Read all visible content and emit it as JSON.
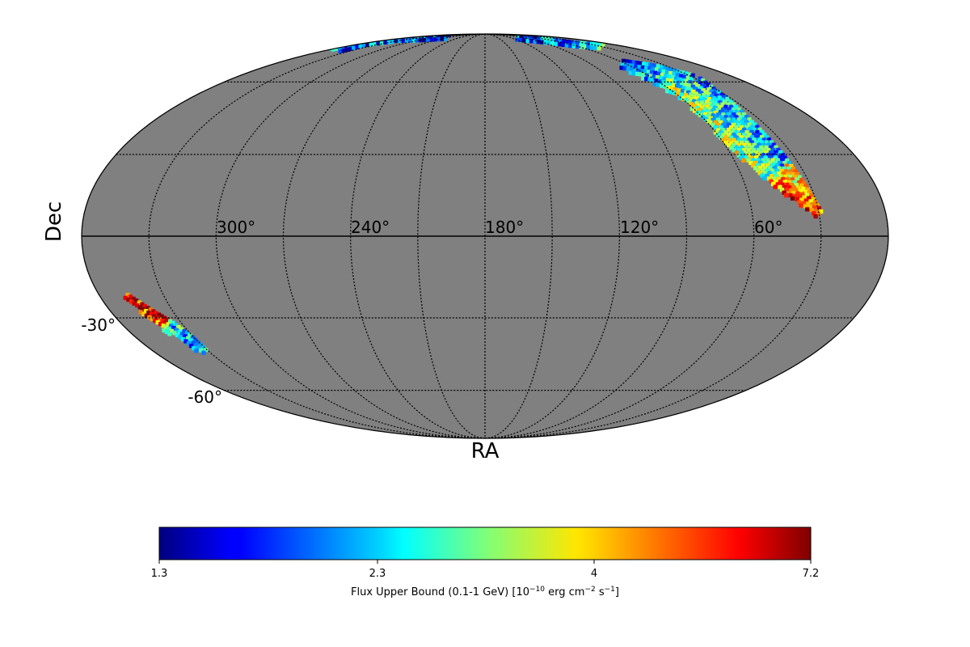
{
  "map": {
    "projection": "mollweide",
    "background_color": "#808080",
    "ra_labels": [
      "300°",
      "240°",
      "180°",
      "120°",
      "60°"
    ],
    "dec_labels": [
      "-30°",
      "-60°"
    ],
    "xlabel": "RA",
    "ylabel": "Dec"
  },
  "colorbar": {
    "colormap": "jet",
    "min": 1.3,
    "max": 7.2,
    "ticks": [
      "1.3",
      "2.3",
      "4",
      "7.2"
    ],
    "label_main": "Flux Upper Bound (0.1-1 GeV) [10",
    "label_exp1": "−10",
    "label_mid1": " erg cm",
    "label_exp2": "−2",
    "label_mid2": " s",
    "label_exp3": "−1",
    "label_end": "]"
  }
}
